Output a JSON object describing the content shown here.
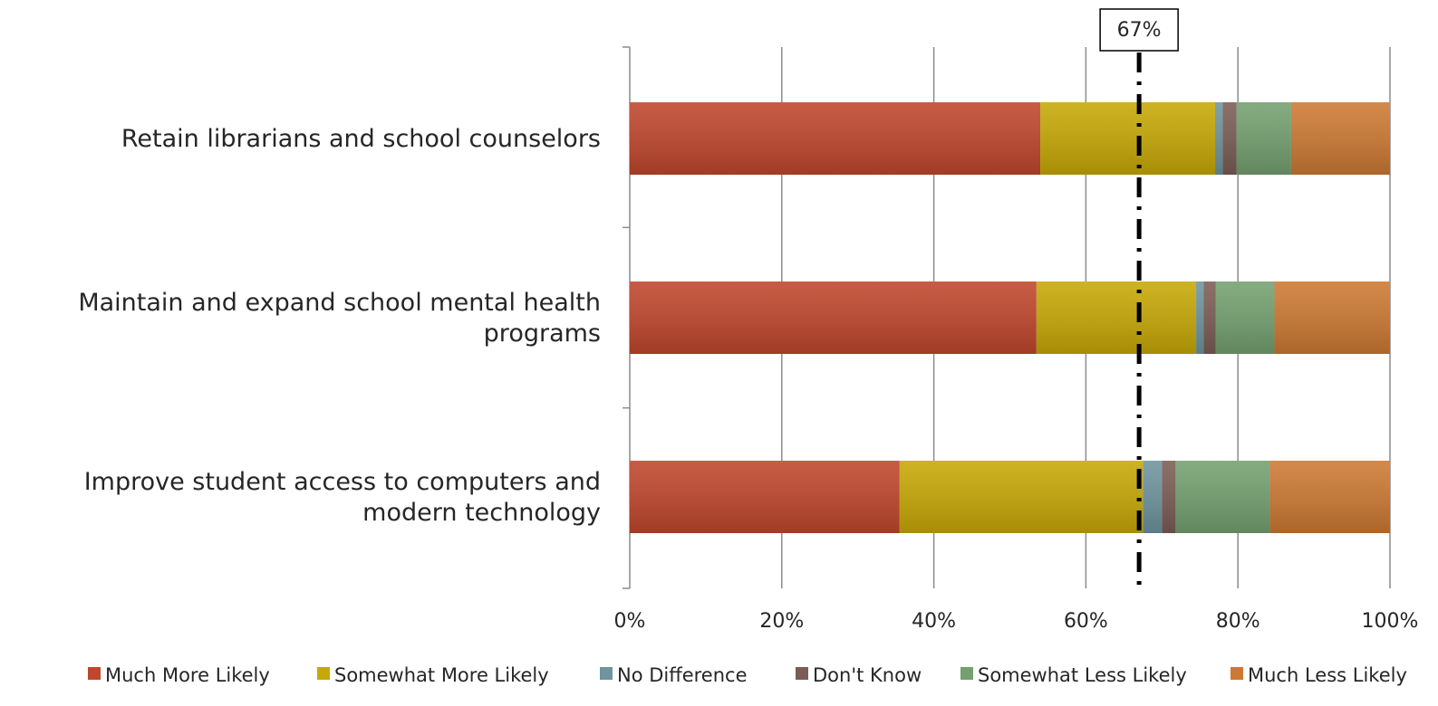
{
  "chart_data": {
    "type": "bar",
    "orientation": "horizontal",
    "stacked": true,
    "categories": [
      "Retain librarians and school counselors",
      "Maintain and expand school mental health programs",
      "Improve student access to computers and modern technology"
    ],
    "series": [
      {
        "name": "Much More Likely",
        "color": "#c0462c",
        "values": [
          54.0,
          53.5,
          35.5
        ]
      },
      {
        "name": "Somewhat More Likely",
        "color": "#c7a805",
        "values": [
          23.0,
          21.0,
          32.0
        ]
      },
      {
        "name": "No Difference",
        "color": "#6e949e",
        "values": [
          1.0,
          1.0,
          2.5
        ]
      },
      {
        "name": "Don't Know",
        "color": "#7a5d55",
        "values": [
          1.8,
          1.6,
          1.8
        ]
      },
      {
        "name": "Somewhat Less Likely",
        "color": "#74a070",
        "values": [
          7.2,
          7.7,
          12.4
        ]
      },
      {
        "name": "Much Less Likely",
        "color": "#cd7932",
        "values": [
          13.0,
          15.2,
          15.8
        ]
      }
    ],
    "xlim": [
      0,
      100
    ],
    "xticks": [
      0,
      20,
      40,
      60,
      80,
      100
    ],
    "tick_labels": [
      "0%",
      "20%",
      "40%",
      "60%",
      "80%",
      "100%"
    ],
    "grid": true,
    "legend_position": "bottom",
    "reference_line": {
      "value": 67,
      "label": "67%",
      "style": "dash-dot"
    }
  }
}
